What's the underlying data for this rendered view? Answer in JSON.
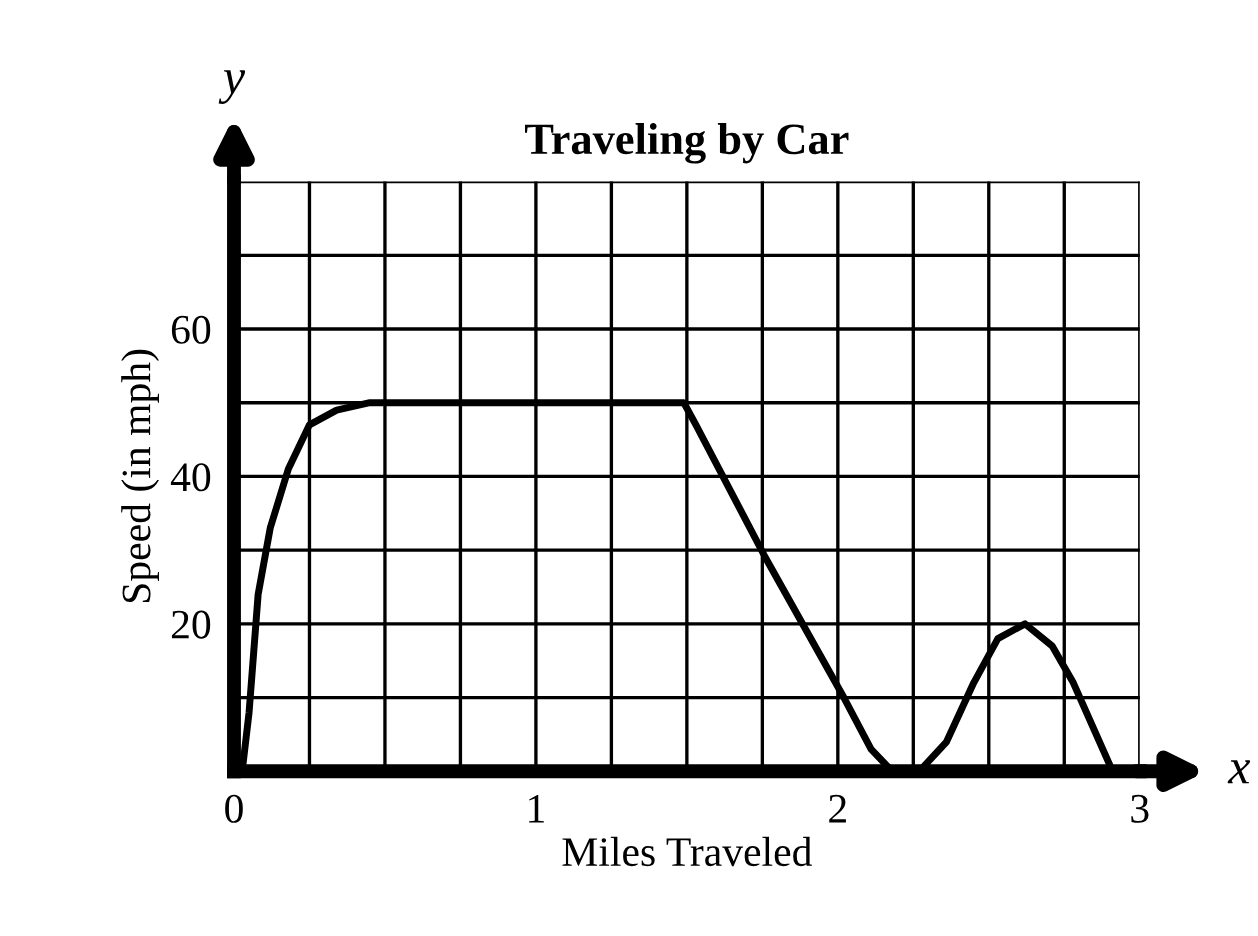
{
  "chart_data": {
    "type": "line",
    "title": "Traveling by Car",
    "xlabel": "Miles Traveled",
    "ylabel": "Speed (in mph)",
    "annotations": [
      "x",
      "y"
    ],
    "x": [
      0,
      0.03,
      0.05,
      0.08,
      0.12,
      0.18,
      0.25,
      0.34,
      0.45,
      1.0,
      1.49,
      1.53,
      1.76,
      2.02,
      2.11,
      2.18,
      2.27,
      2.36,
      2.45,
      2.53,
      2.62,
      2.71,
      2.78,
      2.91
    ],
    "series": [
      {
        "color": "#000000",
        "values": [
          0,
          1,
          8,
          24,
          33,
          41,
          47,
          49,
          50,
          50,
          50,
          47,
          29,
          10,
          3,
          0,
          0,
          4,
          12,
          18,
          20,
          17,
          12,
          0
        ]
      }
    ],
    "xlim": [
      0,
      3
    ],
    "ylim": [
      0,
      80
    ],
    "xticks": [
      0,
      {
        "value": 0.25,
        "label": null
      },
      {
        "value": 0.5,
        "label": null
      },
      {
        "value": 0.75,
        "label": null
      },
      1,
      {
        "value": 1.25,
        "label": null
      },
      {
        "value": 1.5,
        "label": null
      },
      {
        "value": 1.75,
        "label": null
      },
      2,
      {
        "value": 2.25,
        "label": null
      },
      {
        "value": 2.5,
        "label": null
      },
      {
        "value": 2.75,
        "label": null
      },
      3
    ],
    "yticks": [
      {
        "value": 0,
        "label": null
      },
      {
        "value": 10,
        "label": null
      },
      20,
      {
        "value": 30,
        "label": null
      },
      40,
      {
        "value": 50,
        "label": null
      },
      60,
      {
        "value": 70,
        "label": null
      },
      {
        "value": 80,
        "label": null
      }
    ],
    "grid": true,
    "marker": "none",
    "line_style": "solid"
  }
}
